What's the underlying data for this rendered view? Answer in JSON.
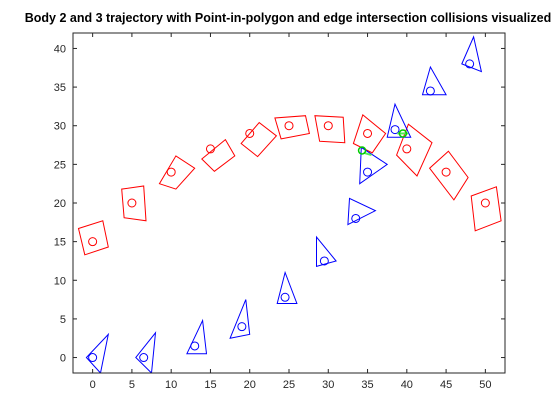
{
  "chart_data": {
    "type": "scatter",
    "title": "Body 2 and 3 trajectory with Point-in-polygon and edge intersection collisions visualized",
    "xlabel": "",
    "ylabel": "",
    "xlim": [
      -2.5,
      52.5
    ],
    "ylim": [
      -2,
      42
    ],
    "x_ticks": [
      "0",
      "5",
      "10",
      "15",
      "20",
      "25",
      "30",
      "35",
      "40",
      "45",
      "50"
    ],
    "y_ticks": [
      "0",
      "5",
      "10",
      "15",
      "20",
      "25",
      "30",
      "35",
      "40"
    ],
    "grid": false,
    "legend": false,
    "colors": {
      "body2": "#ff0000",
      "body3": "#0000ff",
      "collision_point": "#00cc00",
      "collision_line": "#55ee55"
    },
    "series": [
      {
        "body": "body2",
        "centers": [
          [
            0,
            15
          ],
          [
            5,
            20
          ],
          [
            10,
            24
          ],
          [
            15,
            27
          ],
          [
            20,
            29
          ],
          [
            25,
            30
          ],
          [
            30,
            30
          ],
          [
            35,
            29
          ],
          [
            40,
            27
          ],
          [
            45,
            24
          ],
          [
            50,
            20
          ]
        ],
        "polygons": [
          [
            [
              -1,
              13.3
            ],
            [
              2,
              14.3
            ],
            [
              1.3,
              17.7
            ],
            [
              -1.8,
              16.7
            ]
          ],
          [
            [
              4,
              18.1
            ],
            [
              6.8,
              17.7
            ],
            [
              6.5,
              22.2
            ],
            [
              3.7,
              21.8
            ]
          ],
          [
            [
              8.5,
              22.5
            ],
            [
              10.6,
              21.8
            ],
            [
              13,
              24.5
            ],
            [
              10.6,
              26.1
            ]
          ],
          [
            [
              13.9,
              25.7
            ],
            [
              15.5,
              24.1
            ],
            [
              18.1,
              26.1
            ],
            [
              16.9,
              28.2
            ]
          ],
          [
            [
              18.9,
              27.7
            ],
            [
              21,
              26
            ],
            [
              23.4,
              28.7
            ],
            [
              21.2,
              30.4
            ]
          ],
          [
            [
              24,
              28.3
            ],
            [
              27.6,
              29
            ],
            [
              27.1,
              31.3
            ],
            [
              23.2,
              31
            ]
          ],
          [
            [
              28.9,
              28
            ],
            [
              32.1,
              27.8
            ],
            [
              31.9,
              31.1
            ],
            [
              28.3,
              31.3
            ]
          ],
          [
            [
              33.2,
              27.7
            ],
            [
              35.6,
              26.5
            ],
            [
              37.3,
              29
            ],
            [
              34.4,
              31.4
            ]
          ],
          [
            [
              38.7,
              26.2
            ],
            [
              41.3,
              23.5
            ],
            [
              43.2,
              27.8
            ],
            [
              40.2,
              30.2
            ]
          ],
          [
            [
              42.9,
              24.5
            ],
            [
              46,
              20.4
            ],
            [
              47.8,
              23.3
            ],
            [
              45.3,
              26.7
            ]
          ],
          [
            [
              48.2,
              20.9
            ],
            [
              51.4,
              22.1
            ],
            [
              52,
              17.7
            ],
            [
              48.7,
              16.4
            ]
          ]
        ]
      },
      {
        "body": "body3",
        "centers": [
          [
            0,
            0
          ],
          [
            6.5,
            0
          ],
          [
            13,
            1.5
          ],
          [
            19,
            4
          ],
          [
            24.5,
            7.8
          ],
          [
            29.5,
            12.5
          ],
          [
            33.5,
            18
          ],
          [
            35,
            24
          ],
          [
            38.5,
            29.5
          ],
          [
            43,
            34.5
          ],
          [
            48,
            38
          ]
        ],
        "polygons": [
          [
            [
              -0.8,
              0
            ],
            [
              1,
              -2
            ],
            [
              2,
              3
            ]
          ],
          [
            [
              5.5,
              0
            ],
            [
              7.5,
              -2
            ],
            [
              8,
              3.2
            ]
          ],
          [
            [
              12,
              0.5
            ],
            [
              14.5,
              0.5
            ],
            [
              14,
              4.8
            ]
          ],
          [
            [
              17.5,
              2.5
            ],
            [
              20,
              3
            ],
            [
              19.5,
              7.5
            ]
          ],
          [
            [
              23.5,
              7
            ],
            [
              26,
              7
            ],
            [
              24.5,
              11
            ]
          ],
          [
            [
              28.5,
              11.8
            ],
            [
              31,
              12.5
            ],
            [
              28.5,
              15.6
            ]
          ],
          [
            [
              32.5,
              17.2
            ],
            [
              36,
              19
            ],
            [
              32.7,
              20.6
            ]
          ],
          [
            [
              34,
              22.5
            ],
            [
              37.5,
              25
            ],
            [
              34.2,
              27.2
            ]
          ],
          [
            [
              37.5,
              28.5
            ],
            [
              40.5,
              28.5
            ],
            [
              38.5,
              32.8
            ]
          ],
          [
            [
              42,
              34
            ],
            [
              45,
              34
            ],
            [
              43,
              37.6
            ]
          ],
          [
            [
              47,
              38
            ],
            [
              49.5,
              37
            ],
            [
              48.5,
              41.5
            ]
          ]
        ]
      }
    ],
    "collision_points": [
      [
        34.3,
        26.8
      ],
      [
        39.5,
        29
      ]
    ],
    "collision_segments": [
      [
        [
          34.5,
          26.5
        ],
        [
          35.5,
          26.2
        ]
      ],
      [
        [
          38.8,
          29
        ],
        [
          40.2,
          29
        ]
      ]
    ]
  }
}
